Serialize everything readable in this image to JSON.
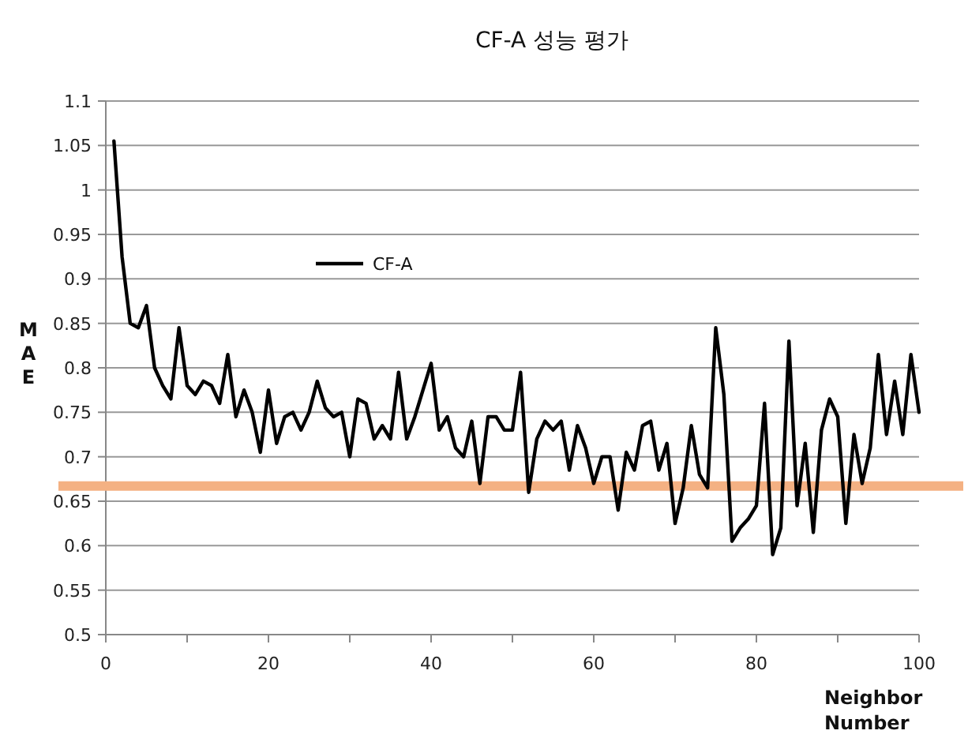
{
  "chart_data": {
    "type": "line",
    "title": "CF-A 성능 평가",
    "xlabel": "Neighbor Number",
    "ylabel": "MAE",
    "x": [
      1,
      2,
      3,
      4,
      5,
      6,
      7,
      8,
      9,
      10,
      11,
      12,
      13,
      14,
      15,
      16,
      17,
      18,
      19,
      20,
      21,
      22,
      23,
      24,
      25,
      26,
      27,
      28,
      29,
      30,
      31,
      32,
      33,
      34,
      35,
      36,
      37,
      38,
      39,
      40,
      41,
      42,
      43,
      44,
      45,
      46,
      47,
      48,
      49,
      50,
      51,
      52,
      53,
      54,
      55,
      56,
      57,
      58,
      59,
      60,
      61,
      62,
      63,
      64,
      65,
      66,
      67,
      68,
      69,
      70,
      71,
      72,
      73,
      74,
      75,
      76,
      77,
      78,
      79,
      80,
      81,
      82,
      83,
      84,
      85,
      86,
      87,
      88,
      89,
      90,
      91,
      92,
      93,
      94,
      95,
      96,
      97,
      98,
      99,
      100
    ],
    "series": [
      {
        "name": "CF-A",
        "color": "#000000",
        "values": [
          1.055,
          0.925,
          0.85,
          0.845,
          0.87,
          0.8,
          0.78,
          0.765,
          0.845,
          0.78,
          0.77,
          0.785,
          0.78,
          0.76,
          0.815,
          0.745,
          0.775,
          0.75,
          0.705,
          0.775,
          0.715,
          0.745,
          0.75,
          0.73,
          0.75,
          0.785,
          0.755,
          0.745,
          0.75,
          0.7,
          0.765,
          0.76,
          0.72,
          0.735,
          0.72,
          0.795,
          0.72,
          0.745,
          0.775,
          0.805,
          0.73,
          0.745,
          0.71,
          0.7,
          0.74,
          0.67,
          0.745,
          0.745,
          0.73,
          0.73,
          0.795,
          0.66,
          0.72,
          0.74,
          0.73,
          0.74,
          0.685,
          0.735,
          0.71,
          0.67,
          0.7,
          0.7,
          0.64,
          0.705,
          0.685,
          0.735,
          0.74,
          0.685,
          0.715,
          0.625,
          0.665,
          0.735,
          0.68,
          0.665,
          0.845,
          0.77,
          0.605,
          0.62,
          0.63,
          0.645,
          0.76,
          0.59,
          0.62,
          0.83,
          0.645,
          0.715,
          0.615,
          0.73,
          0.765,
          0.745,
          0.625,
          0.725,
          0.67,
          0.71,
          0.815,
          0.725,
          0.785,
          0.725,
          0.815,
          0.75
        ]
      }
    ],
    "xlim": [
      0,
      100
    ],
    "ylim": [
      0.5,
      1.1
    ],
    "xticks": [
      0,
      {
        "value": 10,
        "label": null
      },
      20,
      {
        "value": 30,
        "label": null
      },
      40,
      {
        "value": 50,
        "label": null
      },
      60,
      {
        "value": 70,
        "label": null
      },
      80,
      {
        "value": 90,
        "label": null
      },
      100
    ],
    "yticks": [
      0.5,
      0.55,
      0.6,
      0.65,
      0.7,
      0.75,
      0.8,
      0.85,
      0.9,
      0.95,
      1,
      1.05,
      1.1
    ],
    "ref_lines": [
      {
        "axis": "y",
        "value": 0.667,
        "color": "#f4b183"
      }
    ],
    "grid": "y",
    "legend": "top left",
    "marker": "none",
    "line_style": "solid"
  }
}
